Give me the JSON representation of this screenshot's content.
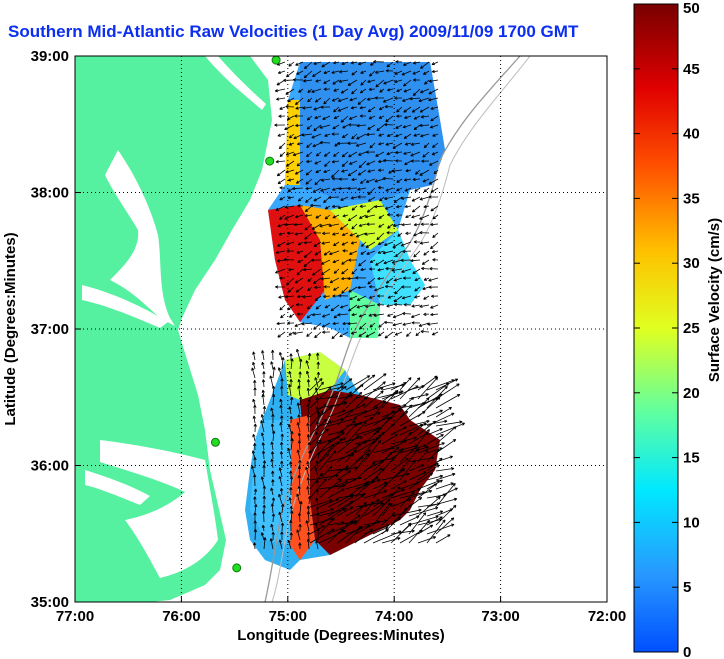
{
  "title": "Southern Mid-Atlantic Raw Velocities (1 Day Avg) 2009/11/09 1700 GMT",
  "map": {
    "x_axis_label": "Longitude (Degrees:Minutes)",
    "y_axis_label": "Latitude (Degrees:Minutes)",
    "lon_ticks": [
      "77:00",
      "76:00",
      "75:00",
      "74:00",
      "73:00",
      "72:00"
    ],
    "lat_ticks": [
      "39:00",
      "38:00",
      "37:00",
      "36:00",
      "35:00"
    ],
    "lon_range": [
      -77,
      -72
    ],
    "lat_range": [
      35,
      39
    ],
    "grid": true,
    "land_color": "#55f0a0",
    "station_color": "#22dd22",
    "station_markers": [
      {
        "lon": -75.11,
        "lat": 38.97
      },
      {
        "lon": -75.17,
        "lat": 38.23
      },
      {
        "lon": -75.68,
        "lat": 36.17
      },
      {
        "lon": -75.48,
        "lat": 35.25
      }
    ]
  },
  "colorbar": {
    "label": "Surface Velocity (cm/s)",
    "ticks": [
      "0",
      "5",
      "10",
      "15",
      "20",
      "25",
      "30",
      "35",
      "40",
      "45",
      "50"
    ],
    "range": [
      0,
      50
    ]
  }
}
